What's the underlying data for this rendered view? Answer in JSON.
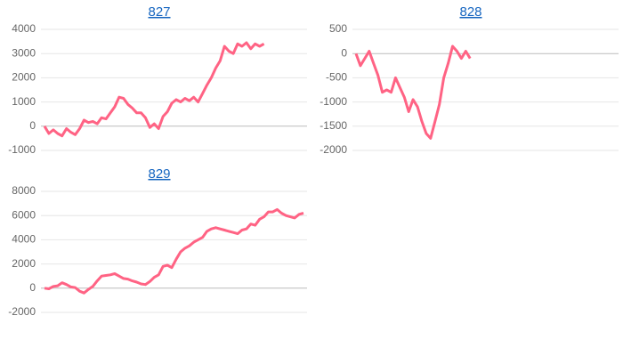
{
  "chart_data": [
    {
      "type": "line",
      "title": "827",
      "categories": [
        null,
        null,
        null,
        null,
        null,
        null,
        null,
        null,
        null,
        null,
        null,
        null,
        null,
        null,
        null,
        null,
        null,
        null,
        null,
        null,
        null,
        null,
        null,
        null,
        null,
        null,
        null,
        null,
        null,
        null,
        null,
        null,
        null,
        null,
        null,
        null,
        null,
        null,
        null,
        null,
        null,
        null,
        null,
        null,
        null,
        null,
        null,
        null,
        null,
        null,
        null,
        null,
        null,
        null,
        null,
        null,
        null,
        null,
        null,
        null
      ],
      "values": [
        0,
        -300,
        -150,
        -300,
        -400,
        -100,
        -250,
        -350,
        -100,
        250,
        150,
        200,
        100,
        350,
        300,
        550,
        800,
        1200,
        1150,
        900,
        750,
        550,
        550,
        350,
        -50,
        100,
        -100,
        400,
        600,
        950,
        1100,
        1000,
        1150,
        1050,
        1200,
        1000,
        1350,
        1700,
        2000,
        2400,
        2700,
        3300,
        3100,
        3000,
        3400,
        3300,
        3450,
        3200,
        3400,
        3300,
        3400,
        null,
        null,
        null,
        null,
        null,
        null,
        null,
        null,
        null
      ],
      "color": "#ff6384",
      "ylim": [
        -1000,
        4000
      ],
      "yticks": [
        -1000,
        0,
        1000,
        2000,
        3000,
        4000
      ],
      "grid": true
    },
    {
      "type": "line",
      "title": "828",
      "categories": [
        null,
        null,
        null,
        null,
        null,
        null,
        null,
        null,
        null,
        null,
        null,
        null,
        null,
        null,
        null,
        null,
        null,
        null,
        null,
        null,
        null,
        null,
        null,
        null,
        null,
        null,
        null,
        null,
        null,
        null,
        null,
        null,
        null,
        null,
        null,
        null,
        null,
        null,
        null,
        null,
        null,
        null,
        null,
        null,
        null,
        null,
        null,
        null,
        null,
        null,
        null,
        null,
        null,
        null,
        null,
        null,
        null,
        null,
        null,
        null
      ],
      "values": [
        0,
        -250,
        -100,
        50,
        -200,
        -450,
        -800,
        -750,
        -800,
        -500,
        -700,
        -900,
        -1200,
        -950,
        -1100,
        -1400,
        -1650,
        -1750,
        -1400,
        -1050,
        -500,
        -200,
        150,
        50,
        -100,
        50,
        -100,
        null,
        null,
        null,
        null,
        null,
        null,
        null,
        null,
        null,
        null,
        null,
        null,
        null,
        null,
        null,
        null,
        null,
        null,
        null,
        null,
        null,
        null,
        null,
        null,
        null,
        null,
        null,
        null,
        null,
        null,
        null,
        null,
        null
      ],
      "color": "#ff6384",
      "ylim": [
        -2000,
        500
      ],
      "yticks": [
        -2000,
        -1500,
        -1000,
        -500,
        0,
        500
      ],
      "grid": true
    },
    {
      "type": "line",
      "title": "829",
      "categories": [
        null,
        null,
        null,
        null,
        null,
        null,
        null,
        null,
        null,
        null,
        null,
        null,
        null,
        null,
        null,
        null,
        null,
        null,
        null,
        null,
        null,
        null,
        null,
        null,
        null,
        null,
        null,
        null,
        null,
        null,
        null,
        null,
        null,
        null,
        null,
        null,
        null,
        null,
        null,
        null,
        null,
        null,
        null,
        null,
        null,
        null,
        null,
        null,
        null,
        null,
        null,
        null,
        null,
        null,
        null,
        null,
        null,
        null,
        null,
        null
      ],
      "values": [
        0,
        -50,
        150,
        200,
        450,
        300,
        100,
        50,
        -250,
        -400,
        -100,
        150,
        600,
        1000,
        1050,
        1100,
        1200,
        1000,
        800,
        750,
        600,
        500,
        350,
        300,
        550,
        900,
        1100,
        1800,
        1900,
        1700,
        2400,
        3000,
        3300,
        3500,
        3800,
        4000,
        4200,
        4700,
        4900,
        5000,
        4900,
        4800,
        4700,
        4600,
        4500,
        4800,
        4900,
        5300,
        5200,
        5700,
        5900,
        6300,
        6300,
        6500,
        6200,
        6000,
        5900,
        5800,
        6100,
        6200
      ],
      "color": "#ff6384",
      "ylim": [
        -2000,
        8000
      ],
      "yticks": [
        -2000,
        0,
        2000,
        4000,
        6000,
        8000
      ],
      "grid": true
    }
  ]
}
